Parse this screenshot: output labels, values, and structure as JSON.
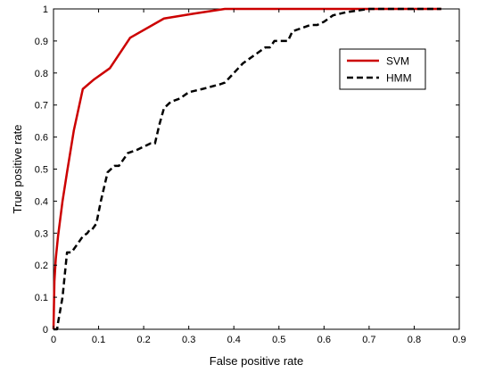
{
  "chart_data": {
    "type": "line",
    "title": "",
    "xlabel": "False positive rate",
    "ylabel": "True positive rate",
    "xlim": [
      0,
      0.9
    ],
    "ylim": [
      0,
      1
    ],
    "xticks": [
      0,
      0.1,
      0.2,
      0.3,
      0.4,
      0.5,
      0.6,
      0.7,
      0.8,
      0.9
    ],
    "xtick_labels": [
      "0",
      "0.1",
      "0.2",
      "0.3",
      "0.4",
      "0.5",
      "0.6",
      "0.7",
      "0.8",
      "0.9"
    ],
    "yticks": [
      0,
      0.1,
      0.2,
      0.3,
      0.4,
      0.5,
      0.6,
      0.7,
      0.8,
      0.9,
      1
    ],
    "ytick_labels": [
      "0",
      "0.1",
      "0.2",
      "0.3",
      "0.4",
      "0.5",
      "0.6",
      "0.7",
      "0.8",
      "0.9",
      "1"
    ],
    "grid": false,
    "legend_position": "top-right",
    "series": [
      {
        "name": "SVM",
        "color": "#cc0000",
        "style": "solid",
        "x": [
          0,
          0.002,
          0.005,
          0.01,
          0.02,
          0.03,
          0.045,
          0.065,
          0.09,
          0.125,
          0.17,
          0.245,
          0.31,
          0.38,
          0.5,
          0.65,
          0.86
        ],
        "y": [
          0,
          0.15,
          0.22,
          0.29,
          0.4,
          0.49,
          0.62,
          0.75,
          0.78,
          0.815,
          0.91,
          0.97,
          0.985,
          1,
          1,
          1,
          1
        ]
      },
      {
        "name": "HMM",
        "color": "#000000",
        "style": "dashed",
        "x": [
          0,
          0.008,
          0.01,
          0.015,
          0.02,
          0.03,
          0.04,
          0.055,
          0.065,
          0.075,
          0.08,
          0.085,
          0.095,
          0.105,
          0.12,
          0.135,
          0.145,
          0.165,
          0.185,
          0.2,
          0.215,
          0.225,
          0.235,
          0.245,
          0.26,
          0.28,
          0.3,
          0.33,
          0.37,
          0.38,
          0.4,
          0.42,
          0.45,
          0.47,
          0.48,
          0.49,
          0.5,
          0.51,
          0.52,
          0.53,
          0.55,
          0.57,
          0.585,
          0.6,
          0.62,
          0.65,
          0.7,
          0.86
        ],
        "y": [
          0,
          0,
          0.02,
          0.06,
          0.1,
          0.24,
          0.24,
          0.27,
          0.29,
          0.3,
          0.31,
          0.31,
          0.33,
          0.4,
          0.49,
          0.51,
          0.51,
          0.55,
          0.56,
          0.57,
          0.58,
          0.58,
          0.64,
          0.69,
          0.71,
          0.72,
          0.74,
          0.75,
          0.765,
          0.77,
          0.8,
          0.83,
          0.86,
          0.88,
          0.88,
          0.9,
          0.9,
          0.9,
          0.9,
          0.93,
          0.94,
          0.95,
          0.95,
          0.96,
          0.98,
          0.99,
          1,
          1
        ]
      }
    ]
  }
}
